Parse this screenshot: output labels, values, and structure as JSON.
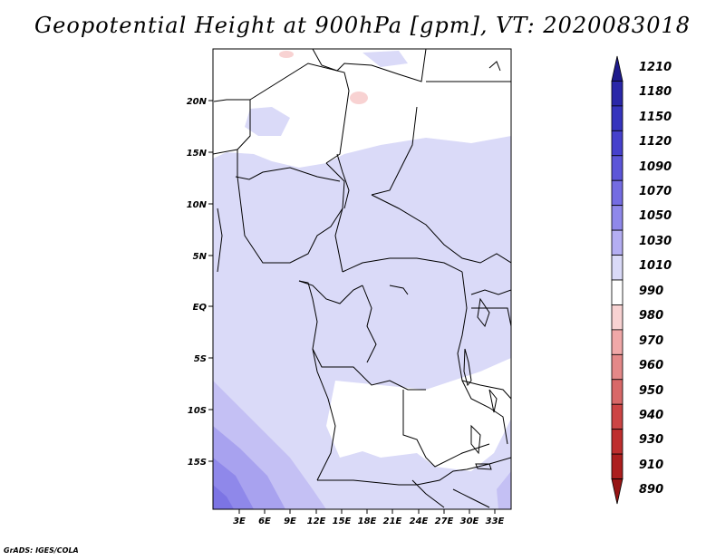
{
  "title": "Geopotential Height at 900hPa [gpm], VT: 2020083018",
  "credit": "GrADS: IGES/COLA",
  "map": {
    "lat_labels": [
      "20N",
      "15N",
      "10N",
      "5N",
      "EQ",
      "5S",
      "10S",
      "15S"
    ],
    "lon_labels": [
      "3E",
      "6E",
      "9E",
      "12E",
      "15E",
      "18E",
      "21E",
      "24E",
      "27E",
      "30E",
      "33E"
    ]
  },
  "colorbar": {
    "levels": [
      "1210",
      "1180",
      "1150",
      "1120",
      "1090",
      "1070",
      "1050",
      "1030",
      "1010",
      "990",
      "980",
      "970",
      "960",
      "950",
      "940",
      "930",
      "910",
      "890"
    ],
    "colors": [
      "#1e1a8c",
      "#2a27a8",
      "#3634bd",
      "#4640cc",
      "#5c55d8",
      "#746ce2",
      "#8f88ea",
      "#b4aef2",
      "#dadaf8",
      "#ffffff",
      "#f8d2d2",
      "#f0a8a8",
      "#e48888",
      "#d86868",
      "#cc4444",
      "#be2e2e",
      "#ac1e1e",
      "#961414"
    ]
  }
}
